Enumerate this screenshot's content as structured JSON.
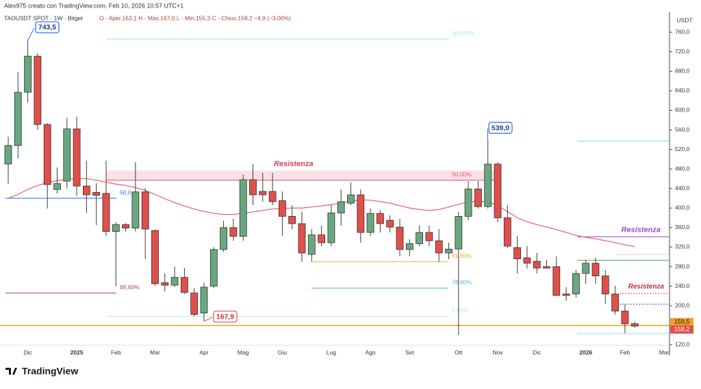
{
  "chart_data": {
    "type": "candlestick",
    "title": "Alex975 creato con TradingView.com, Feb 10, 2026 10:57 UTC+1",
    "subtitle": "TAOUSDT SPOT · 1W · Bitget",
    "ohlc_legend": "O - Aper.163,1  H - Max.167,0  L - Min.155,3  C - Chius.158,2  −4,9 (−3,00%)",
    "y_axis_label": "USDT",
    "brand": "TradingView",
    "ylim": [
      112,
      784
    ],
    "yticks": [
      {
        "value": 120,
        "label": "120,0"
      },
      {
        "value": 160,
        "label": "160,0"
      },
      {
        "value": 200,
        "label": "200,0"
      },
      {
        "value": 240,
        "label": "240,0"
      },
      {
        "value": 280,
        "label": "280,0"
      },
      {
        "value": 320,
        "label": "320,0"
      },
      {
        "value": 360,
        "label": "360,0"
      },
      {
        "value": 400,
        "label": "400,0"
      },
      {
        "value": 440,
        "label": "440,0"
      },
      {
        "value": 480,
        "label": "480,0"
      },
      {
        "value": 520,
        "label": "520,0"
      },
      {
        "value": 560,
        "label": "560,0"
      },
      {
        "value": 600,
        "label": "600,0"
      },
      {
        "value": 640,
        "label": "640,0"
      },
      {
        "value": 680,
        "label": "680,0"
      },
      {
        "value": 720,
        "label": "720,0"
      },
      {
        "value": 760,
        "label": "760,0"
      }
    ],
    "categories": [
      null,
      null,
      "Dic",
      null,
      null,
      null,
      null,
      "2025",
      null,
      null,
      null,
      "Feb",
      null,
      null,
      null,
      "Mar",
      null,
      null,
      null,
      null,
      "Apr",
      null,
      null,
      null,
      "Mag",
      null,
      null,
      null,
      "Giu",
      null,
      null,
      null,
      null,
      "Lug",
      null,
      null,
      null,
      "Ago",
      null,
      null,
      null,
      "Set",
      null,
      null,
      null,
      null,
      "Ott",
      null,
      null,
      null,
      "Nov",
      null,
      null,
      null,
      "Dic",
      null,
      null,
      null,
      null,
      "2026",
      null,
      null,
      null,
      "Feb",
      null,
      null,
      null,
      "Mar"
    ],
    "up_color": "#6aa77f",
    "down_color": "#e0504a",
    "open": [
      490,
      528,
      637,
      711,
      571,
      438,
      455,
      562,
      445,
      432,
      430,
      352,
      366,
      359,
      433,
      354,
      247,
      242,
      258,
      226,
      185,
      240,
      315,
      360,
      342,
      458,
      434,
      434,
      415,
      383,
      368,
      305,
      345,
      329,
      390,
      410,
      427,
      350,
      389,
      375,
      361,
      315,
      327,
      350,
      333,
      308,
      316,
      383,
      439,
      403,
      490,
      380,
      319,
      298,
      291,
      280,
      280,
      224,
      224,
      266,
      287,
      261,
      224,
      189,
      163.1,
      null,
      null,
      null
    ],
    "high": [
      546,
      679,
      743.5,
      717,
      574,
      483,
      585,
      587,
      497,
      451,
      497,
      371,
      369,
      494,
      441,
      356,
      266,
      280,
      277,
      236,
      247,
      320,
      374,
      378,
      469,
      490,
      472,
      472,
      434,
      406,
      392,
      357,
      364,
      406,
      438,
      452,
      438,
      399,
      396,
      385,
      378,
      336,
      364,
      364,
      357,
      329,
      392,
      455,
      455,
      539,
      494,
      406,
      343,
      322,
      308,
      294,
      301,
      238,
      273,
      294,
      298,
      273,
      241,
      203,
      167,
      null,
      null,
      null
    ],
    "low": [
      450,
      501,
      616,
      560,
      399,
      430,
      440,
      425,
      390,
      365,
      343,
      240,
      352,
      352,
      296,
      241,
      229,
      238,
      224,
      178,
      167.9,
      236,
      310,
      333,
      333,
      406,
      413,
      406,
      343,
      357,
      290,
      290,
      322,
      322,
      364,
      406,
      329,
      343,
      350,
      350,
      301,
      301,
      322,
      322,
      290,
      295,
      140,
      375,
      399,
      399,
      371,
      318,
      266,
      276,
      266,
      276,
      220,
      210,
      217,
      245,
      245,
      203,
      182,
      144,
      155.3,
      null,
      null,
      null
    ],
    "close": [
      528,
      637,
      711,
      571,
      448,
      450,
      562,
      445,
      427,
      426,
      352,
      366,
      359,
      433,
      357,
      245,
      242,
      258,
      227,
      182,
      238,
      315,
      360,
      342,
      458,
      427,
      427,
      413,
      383,
      368,
      308,
      345,
      329,
      390,
      413,
      427,
      350,
      389,
      368,
      361,
      315,
      327,
      350,
      333,
      308,
      316,
      383,
      439,
      403,
      490,
      380,
      322,
      296,
      287,
      277,
      277,
      221,
      221,
      266,
      287,
      261,
      224,
      189,
      163,
      158.2,
      null,
      null,
      null
    ],
    "ma": {
      "color": "#e8686d",
      "values": [
        420,
        428,
        438,
        446,
        452,
        456,
        459,
        460,
        460,
        457,
        453,
        449,
        446,
        442,
        436,
        428,
        419,
        411,
        404,
        398,
        393,
        389,
        387,
        387,
        389,
        392,
        395,
        398,
        399,
        400,
        400,
        402,
        404,
        407,
        410,
        414,
        417,
        416,
        413,
        410,
        405,
        400,
        397,
        395,
        397,
        402,
        408,
        412,
        414,
        413,
        405,
        393,
        380,
        372,
        366,
        361,
        356,
        350,
        344,
        340,
        337,
        333,
        329,
        325,
        321,
        null,
        null,
        null
      ]
    },
    "levels": [
      {
        "value": 420,
        "color": "#2962ff",
        "label": "50,0"
      },
      {
        "value": 226,
        "color": "#b03a8e",
        "label": "88,60%"
      },
      {
        "value": 746,
        "color": "#a6e3e6",
        "label": "100,00%"
      },
      {
        "value": 457,
        "color": "#e05566",
        "label": "50,00%"
      },
      {
        "value": 290,
        "color": "#f5a623",
        "label": "61,60%"
      },
      {
        "value": 236,
        "color": "#4fb3d9",
        "label": "78,60%"
      },
      {
        "value": 178,
        "color": "#b8e6e6",
        "label": "0,00%"
      },
      {
        "value": 537,
        "color": "#7fd0dc"
      },
      {
        "value": 341,
        "color": "#9c4ccf"
      },
      {
        "value": 293,
        "color": "#4c9a5a"
      },
      {
        "value": 305,
        "color": "#b0b0b0"
      },
      {
        "value": 225,
        "color": "#d23a4f"
      },
      {
        "value": 203,
        "color": "#3a4a8a"
      },
      {
        "value": 159.5,
        "color": "#f0a020"
      },
      {
        "value": 143,
        "color": "#9fd9e0"
      }
    ],
    "zones": [
      {
        "from": 456,
        "to": 477,
        "color": "#f8c9cf",
        "label": "Resistenza"
      },
      {
        "from": 341,
        "to": 341,
        "color": "#9c4ccf",
        "label": "Resistenza"
      },
      {
        "from": 225,
        "to": 225,
        "color": "#c0303f",
        "label": "Resistenza"
      }
    ],
    "annotations": [
      {
        "index": 2,
        "value": 743.5,
        "label": "743,5",
        "color": "#2962ff"
      },
      {
        "index": 49,
        "value": 539,
        "label": "539,0",
        "color": "#2962ff"
      },
      {
        "index": 20,
        "value": 167.9,
        "label": "167,9",
        "color": "#e0504a"
      }
    ],
    "price_labels": [
      {
        "value": 159.5,
        "label": "159,5",
        "color": "#f0a020"
      },
      {
        "value": 158.2,
        "label": "158,2",
        "color": "#e0504a"
      }
    ]
  }
}
